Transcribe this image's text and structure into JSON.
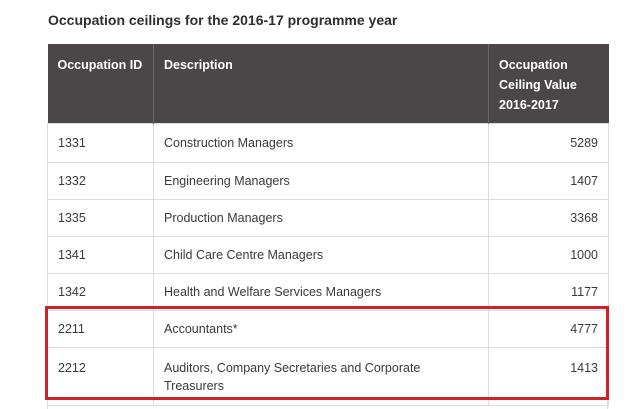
{
  "caption": "Occupation ceilings for the 2016-17 programme year",
  "table": {
    "headers": {
      "id": "Occupation ID",
      "description": "Description",
      "value_line1": "Occupation",
      "value_line2": "Ceiling Value",
      "value_line3": "2016-2017"
    },
    "rows": [
      {
        "id": "1331",
        "description": "Construction Managers",
        "value": "5289"
      },
      {
        "id": "1332",
        "description": "Engineering Managers",
        "value": "1407"
      },
      {
        "id": "1335",
        "description": "Production Managers",
        "value": "3368"
      },
      {
        "id": "1341",
        "description": "Child Care Centre Managers",
        "value": "1000"
      },
      {
        "id": "1342",
        "description": "Health and Welfare Services Managers",
        "value": "1177"
      },
      {
        "id": "2211",
        "description": "Accountants*",
        "value": "4777"
      },
      {
        "id": "2212",
        "description": "Auditors, Company Secretaries and Corporate Treasurers",
        "value": "1413"
      }
    ]
  },
  "highlight_color": "#d0202b",
  "header_color": "#4b4748"
}
